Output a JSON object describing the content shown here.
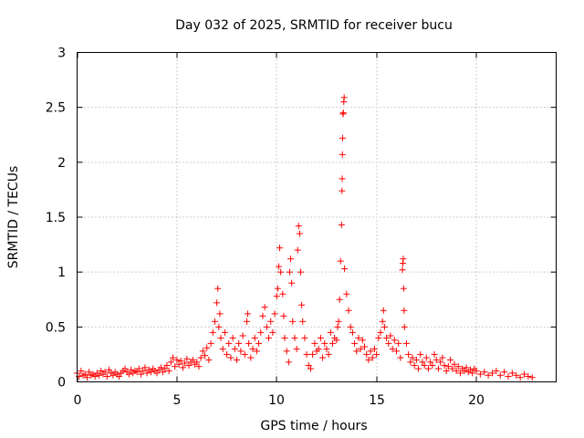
{
  "chart_data": {
    "type": "scatter",
    "title": "Day 032 of 2025, SRMTID for receiver bucu",
    "xlabel": "GPS time / hours",
    "ylabel": "SRMTID / TECUs",
    "xlim": [
      0,
      24
    ],
    "ylim": [
      0,
      3
    ],
    "x_ticks": [
      0,
      5,
      10,
      15,
      20
    ],
    "x_tick_labels": [
      "0",
      "5",
      "10",
      "15",
      "20"
    ],
    "y_ticks": [
      0,
      0.5,
      1,
      1.5,
      2,
      2.5,
      3
    ],
    "y_tick_labels": [
      "0",
      "0.5",
      "1",
      "1.5",
      "2",
      "2.5",
      "3"
    ],
    "grid": true,
    "marker": "+",
    "marker_color": "#ff0000",
    "series": [
      {
        "name": "bucu",
        "points": [
          [
            0.0,
            0.08
          ],
          [
            0.1,
            0.05
          ],
          [
            0.2,
            0.1
          ],
          [
            0.3,
            0.06
          ],
          [
            0.4,
            0.07
          ],
          [
            0.5,
            0.04
          ],
          [
            0.6,
            0.09
          ],
          [
            0.7,
            0.06
          ],
          [
            0.8,
            0.07
          ],
          [
            0.9,
            0.05
          ],
          [
            1.0,
            0.08
          ],
          [
            1.1,
            0.06
          ],
          [
            1.2,
            0.1
          ],
          [
            1.3,
            0.07
          ],
          [
            1.4,
            0.09
          ],
          [
            1.5,
            0.05
          ],
          [
            1.6,
            0.11
          ],
          [
            1.7,
            0.08
          ],
          [
            1.8,
            0.06
          ],
          [
            1.9,
            0.09
          ],
          [
            2.0,
            0.07
          ],
          [
            2.1,
            0.05
          ],
          [
            2.2,
            0.08
          ],
          [
            2.3,
            0.1
          ],
          [
            2.4,
            0.12
          ],
          [
            2.5,
            0.09
          ],
          [
            2.6,
            0.07
          ],
          [
            2.7,
            0.11
          ],
          [
            2.8,
            0.08
          ],
          [
            2.9,
            0.1
          ],
          [
            3.0,
            0.09
          ],
          [
            3.1,
            0.12
          ],
          [
            3.2,
            0.07
          ],
          [
            3.3,
            0.1
          ],
          [
            3.4,
            0.13
          ],
          [
            3.5,
            0.08
          ],
          [
            3.6,
            0.11
          ],
          [
            3.7,
            0.09
          ],
          [
            3.8,
            0.12
          ],
          [
            3.9,
            0.1
          ],
          [
            4.0,
            0.08
          ],
          [
            4.1,
            0.11
          ],
          [
            4.2,
            0.13
          ],
          [
            4.3,
            0.09
          ],
          [
            4.4,
            0.12
          ],
          [
            4.5,
            0.15
          ],
          [
            4.6,
            0.1
          ],
          [
            4.7,
            0.18
          ],
          [
            4.8,
            0.22
          ],
          [
            4.9,
            0.14
          ],
          [
            5.0,
            0.2
          ],
          [
            5.1,
            0.16
          ],
          [
            5.2,
            0.19
          ],
          [
            5.3,
            0.13
          ],
          [
            5.4,
            0.17
          ],
          [
            5.5,
            0.21
          ],
          [
            5.6,
            0.15
          ],
          [
            5.7,
            0.18
          ],
          [
            5.8,
            0.2
          ],
          [
            5.9,
            0.16
          ],
          [
            6.0,
            0.18
          ],
          [
            6.1,
            0.14
          ],
          [
            6.2,
            0.22
          ],
          [
            6.3,
            0.28
          ],
          [
            6.4,
            0.24
          ],
          [
            6.5,
            0.31
          ],
          [
            6.6,
            0.2
          ],
          [
            6.7,
            0.35
          ],
          [
            6.8,
            0.45
          ],
          [
            6.9,
            0.55
          ],
          [
            7.0,
            0.72
          ],
          [
            7.05,
            0.85
          ],
          [
            7.1,
            0.5
          ],
          [
            7.15,
            0.62
          ],
          [
            7.2,
            0.4
          ],
          [
            7.3,
            0.3
          ],
          [
            7.4,
            0.45
          ],
          [
            7.5,
            0.25
          ],
          [
            7.6,
            0.35
          ],
          [
            7.7,
            0.22
          ],
          [
            7.8,
            0.4
          ],
          [
            7.9,
            0.3
          ],
          [
            8.0,
            0.2
          ],
          [
            8.1,
            0.35
          ],
          [
            8.2,
            0.28
          ],
          [
            8.3,
            0.42
          ],
          [
            8.4,
            0.25
          ],
          [
            8.5,
            0.55
          ],
          [
            8.55,
            0.62
          ],
          [
            8.6,
            0.35
          ],
          [
            8.7,
            0.22
          ],
          [
            8.8,
            0.3
          ],
          [
            8.9,
            0.4
          ],
          [
            9.0,
            0.28
          ],
          [
            9.1,
            0.35
          ],
          [
            9.2,
            0.45
          ],
          [
            9.3,
            0.6
          ],
          [
            9.4,
            0.68
          ],
          [
            9.5,
            0.5
          ],
          [
            9.6,
            0.4
          ],
          [
            9.7,
            0.55
          ],
          [
            9.8,
            0.45
          ],
          [
            9.9,
            0.62
          ],
          [
            10.0,
            0.78
          ],
          [
            10.05,
            0.85
          ],
          [
            10.1,
            1.05
          ],
          [
            10.15,
            1.22
          ],
          [
            10.2,
            1.0
          ],
          [
            10.3,
            0.8
          ],
          [
            10.35,
            0.6
          ],
          [
            10.4,
            0.4
          ],
          [
            10.5,
            0.28
          ],
          [
            10.6,
            0.18
          ],
          [
            10.65,
            1.0
          ],
          [
            10.7,
            1.12
          ],
          [
            10.75,
            0.9
          ],
          [
            10.8,
            0.55
          ],
          [
            10.9,
            0.4
          ],
          [
            11.0,
            0.3
          ],
          [
            11.05,
            1.2
          ],
          [
            11.1,
            1.42
          ],
          [
            11.15,
            1.35
          ],
          [
            11.2,
            1.0
          ],
          [
            11.25,
            0.7
          ],
          [
            11.3,
            0.55
          ],
          [
            11.4,
            0.4
          ],
          [
            11.5,
            0.25
          ],
          [
            11.6,
            0.15
          ],
          [
            11.7,
            0.12
          ],
          [
            11.8,
            0.25
          ],
          [
            11.9,
            0.35
          ],
          [
            12.0,
            0.28
          ],
          [
            12.1,
            0.3
          ],
          [
            12.2,
            0.4
          ],
          [
            12.3,
            0.22
          ],
          [
            12.4,
            0.35
          ],
          [
            12.5,
            0.3
          ],
          [
            12.6,
            0.25
          ],
          [
            12.7,
            0.45
          ],
          [
            12.8,
            0.35
          ],
          [
            12.9,
            0.4
          ],
          [
            13.0,
            0.38
          ],
          [
            13.05,
            0.5
          ],
          [
            13.1,
            0.55
          ],
          [
            13.15,
            0.75
          ],
          [
            13.2,
            1.1
          ],
          [
            13.25,
            1.43
          ],
          [
            13.27,
            1.74
          ],
          [
            13.28,
            1.85
          ],
          [
            13.29,
            2.07
          ],
          [
            13.3,
            2.22
          ],
          [
            13.32,
            2.44
          ],
          [
            13.34,
            2.45
          ],
          [
            13.36,
            2.55
          ],
          [
            13.38,
            2.59
          ],
          [
            13.4,
            1.03
          ],
          [
            13.5,
            0.8
          ],
          [
            13.6,
            0.65
          ],
          [
            13.7,
            0.5
          ],
          [
            13.8,
            0.45
          ],
          [
            13.9,
            0.35
          ],
          [
            14.0,
            0.28
          ],
          [
            14.1,
            0.4
          ],
          [
            14.2,
            0.3
          ],
          [
            14.3,
            0.38
          ],
          [
            14.4,
            0.32
          ],
          [
            14.5,
            0.25
          ],
          [
            14.6,
            0.2
          ],
          [
            14.7,
            0.28
          ],
          [
            14.8,
            0.22
          ],
          [
            14.9,
            0.3
          ],
          [
            15.0,
            0.25
          ],
          [
            15.1,
            0.4
          ],
          [
            15.2,
            0.45
          ],
          [
            15.3,
            0.55
          ],
          [
            15.35,
            0.65
          ],
          [
            15.4,
            0.5
          ],
          [
            15.5,
            0.4
          ],
          [
            15.6,
            0.35
          ],
          [
            15.7,
            0.42
          ],
          [
            15.8,
            0.3
          ],
          [
            15.9,
            0.38
          ],
          [
            16.0,
            0.28
          ],
          [
            16.1,
            0.35
          ],
          [
            16.2,
            0.22
          ],
          [
            16.3,
            1.02
          ],
          [
            16.32,
            1.08
          ],
          [
            16.34,
            1.12
          ],
          [
            16.36,
            0.85
          ],
          [
            16.38,
            0.65
          ],
          [
            16.4,
            0.5
          ],
          [
            16.5,
            0.35
          ],
          [
            16.6,
            0.25
          ],
          [
            16.7,
            0.18
          ],
          [
            16.8,
            0.22
          ],
          [
            16.9,
            0.15
          ],
          [
            17.0,
            0.2
          ],
          [
            17.1,
            0.12
          ],
          [
            17.2,
            0.25
          ],
          [
            17.3,
            0.18
          ],
          [
            17.4,
            0.15
          ],
          [
            17.5,
            0.22
          ],
          [
            17.6,
            0.12
          ],
          [
            17.7,
            0.18
          ],
          [
            17.8,
            0.15
          ],
          [
            17.9,
            0.25
          ],
          [
            18.0,
            0.2
          ],
          [
            18.1,
            0.12
          ],
          [
            18.2,
            0.18
          ],
          [
            18.3,
            0.22
          ],
          [
            18.4,
            0.15
          ],
          [
            18.5,
            0.1
          ],
          [
            18.6,
            0.14
          ],
          [
            18.7,
            0.2
          ],
          [
            18.8,
            0.12
          ],
          [
            18.9,
            0.16
          ],
          [
            19.0,
            0.1
          ],
          [
            19.1,
            0.14
          ],
          [
            19.2,
            0.08
          ],
          [
            19.3,
            0.12
          ],
          [
            19.4,
            0.1
          ],
          [
            19.5,
            0.13
          ],
          [
            19.6,
            0.09
          ],
          [
            19.7,
            0.11
          ],
          [
            19.8,
            0.08
          ],
          [
            19.9,
            0.12
          ],
          [
            20.0,
            0.1
          ],
          [
            20.2,
            0.07
          ],
          [
            20.4,
            0.09
          ],
          [
            20.6,
            0.06
          ],
          [
            20.8,
            0.08
          ],
          [
            21.0,
            0.1
          ],
          [
            21.2,
            0.06
          ],
          [
            21.4,
            0.09
          ],
          [
            21.6,
            0.05
          ],
          [
            21.8,
            0.08
          ],
          [
            22.0,
            0.06
          ],
          [
            22.2,
            0.04
          ],
          [
            22.4,
            0.07
          ],
          [
            22.6,
            0.05
          ],
          [
            22.8,
            0.04
          ]
        ]
      }
    ]
  }
}
